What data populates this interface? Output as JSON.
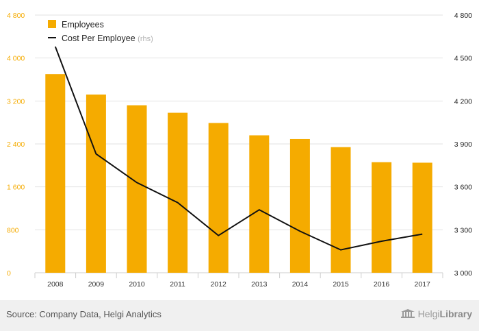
{
  "chart_data": {
    "type": "bar+line",
    "categories": [
      "2008",
      "2009",
      "2010",
      "2011",
      "2012",
      "2013",
      "2014",
      "2015",
      "2016",
      "2017"
    ],
    "series": [
      {
        "name": "Employees",
        "type": "bar",
        "axis": "left",
        "color": "#f5ab00",
        "values": [
          3700,
          3320,
          3120,
          2980,
          2790,
          2560,
          2490,
          2340,
          2060,
          2050
        ]
      },
      {
        "name": "Cost Per Employee",
        "suffix": "(rhs)",
        "type": "line",
        "axis": "right",
        "color": "#111111",
        "values": [
          4580,
          3830,
          3630,
          3490,
          3260,
          3440,
          3290,
          3160,
          3220,
          3270
        ]
      }
    ],
    "y_left": {
      "min": 0,
      "max": 4800,
      "ticks": [
        "0",
        "800",
        "1 600",
        "2 400",
        "3 200",
        "4 000",
        "4 800"
      ],
      "tick_values": [
        0,
        800,
        1600,
        2400,
        3200,
        4000,
        4800
      ]
    },
    "y_right": {
      "min": 3000,
      "max": 4800,
      "ticks": [
        "3 000",
        "3 300",
        "3 600",
        "3 900",
        "4 200",
        "4 500",
        "4 800"
      ],
      "tick_values": [
        3000,
        3300,
        3600,
        3900,
        4200,
        4500,
        4800
      ]
    },
    "legend": {
      "position": "top-left"
    }
  },
  "footer": {
    "source": "Source: Company Data, Helgi Analytics",
    "brand_prefix": "Helgi",
    "brand_suffix": "Library"
  }
}
